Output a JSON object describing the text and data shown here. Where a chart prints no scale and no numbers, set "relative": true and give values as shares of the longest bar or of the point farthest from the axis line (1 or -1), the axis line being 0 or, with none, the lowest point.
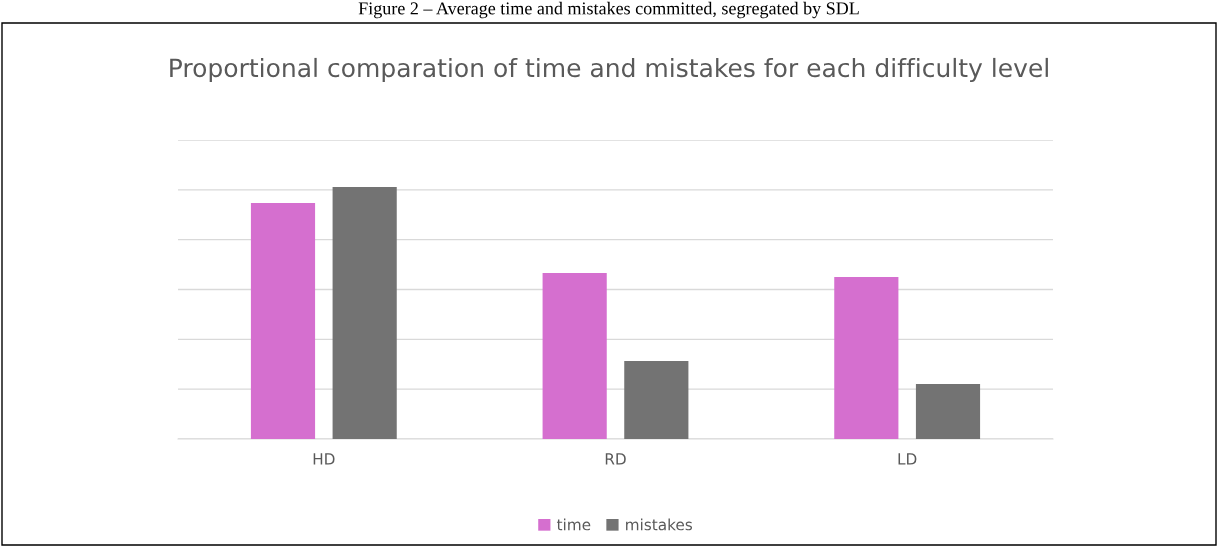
{
  "chart_data": {
    "type": "bar",
    "title": "Proportional comparation of time and mistakes for each difficulty level",
    "annotations": [
      "Figure 2 – Average time and mistakes committed, segregated by SDL"
    ],
    "categories": [
      "HD",
      "RD",
      "LD"
    ],
    "relative": true,
    "series": [
      {
        "name": "time",
        "color": "#d56fcf",
        "values": [
          0.937,
          0.659,
          0.643
        ]
      },
      {
        "name": "mistakes",
        "color": "#737373",
        "values": [
          1,
          0.31,
          0.218
        ]
      }
    ],
    "grid": "y",
    "legend": "bottom"
  }
}
